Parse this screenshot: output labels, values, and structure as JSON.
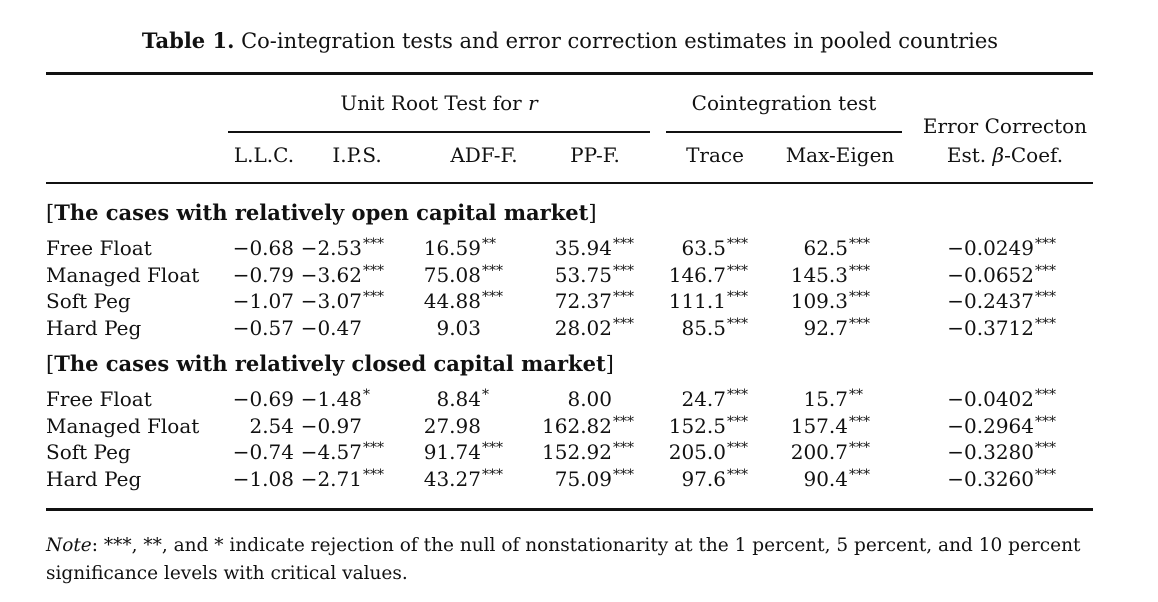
{
  "caption": {
    "label": "Table 1.",
    "text": " Co-integration tests and error correction estimates in pooled countries"
  },
  "headers": {
    "unit_root_group": "Unit Root Test for ",
    "unit_root_var": "r",
    "coint_group": "Cointegration test",
    "error_line1": "Error Correcton",
    "error_line2_pre": "Est. ",
    "error_line2_beta": "β",
    "error_line2_post": "-Coef.",
    "columns": [
      "L.L.C.",
      "I.P.S.",
      "ADF-F.",
      "PP-F.",
      "Trace",
      "Max-Eigen"
    ]
  },
  "groups": [
    {
      "bracket_open": "[",
      "title": "The cases with relatively open capital market",
      "bracket_close": "]",
      "rows": [
        {
          "label": "Free Float",
          "llc": "−0.68",
          "ips": "−2.53",
          "ips_sig": "***",
          "adf": "16.59",
          "adf_sig": "**",
          "pp": "35.94",
          "pp_sig": "***",
          "trace": "63.5",
          "trace_sig": "***",
          "maxeig": "62.5",
          "maxeig_sig": "***",
          "beta": "−0.0249",
          "beta_sig": "***"
        },
        {
          "label": "Managed Float",
          "llc": "−0.79",
          "ips": "−3.62",
          "ips_sig": "***",
          "adf": "75.08",
          "adf_sig": "***",
          "pp": "53.75",
          "pp_sig": "***",
          "trace": "146.7",
          "trace_sig": "***",
          "maxeig": "145.3",
          "maxeig_sig": "***",
          "beta": "−0.0652",
          "beta_sig": "***"
        },
        {
          "label": "Soft Peg",
          "llc": "−1.07",
          "ips": "−3.07",
          "ips_sig": "***",
          "adf": "44.88",
          "adf_sig": "***",
          "pp": "72.37",
          "pp_sig": "***",
          "trace": "111.1",
          "trace_sig": "***",
          "maxeig": "109.3",
          "maxeig_sig": "***",
          "beta": "−0.2437",
          "beta_sig": "***"
        },
        {
          "label": "Hard Peg",
          "llc": "−0.57",
          "ips": "−0.47",
          "ips_sig": "",
          "adf": "9.03",
          "adf_sig": "",
          "pp": "28.02",
          "pp_sig": "***",
          "trace": "85.5",
          "trace_sig": "***",
          "maxeig": "92.7",
          "maxeig_sig": "***",
          "beta": "−0.3712",
          "beta_sig": "***"
        }
      ]
    },
    {
      "bracket_open": "[",
      "title": "The cases with relatively closed capital market",
      "bracket_close": "]",
      "rows": [
        {
          "label": "Free Float",
          "llc": "−0.69",
          "ips": "−1.48",
          "ips_sig": "*",
          "adf": "8.84",
          "adf_sig": "*",
          "pp": "8.00",
          "pp_sig": "",
          "trace": "24.7",
          "trace_sig": "***",
          "maxeig": "15.7",
          "maxeig_sig": "**",
          "beta": "−0.0402",
          "beta_sig": "***"
        },
        {
          "label": "Managed Float",
          "llc": "2.54",
          "ips": "−0.97",
          "ips_sig": "",
          "adf": "27.98",
          "adf_sig": "",
          "pp": "162.82",
          "pp_sig": "***",
          "trace": "152.5",
          "trace_sig": "***",
          "maxeig": "157.4",
          "maxeig_sig": "***",
          "beta": "−0.2964",
          "beta_sig": "***"
        },
        {
          "label": "Soft Peg",
          "llc": "−0.74",
          "ips": "−4.57",
          "ips_sig": "***",
          "adf": "91.74",
          "adf_sig": "***",
          "pp": "152.92",
          "pp_sig": "***",
          "trace": "205.0",
          "trace_sig": "***",
          "maxeig": "200.7",
          "maxeig_sig": "***",
          "beta": "−0.3280",
          "beta_sig": "***"
        },
        {
          "label": "Hard Peg",
          "llc": "−1.08",
          "ips": "−2.71",
          "ips_sig": "***",
          "adf": "43.27",
          "adf_sig": "***",
          "pp": "75.09",
          "pp_sig": "***",
          "trace": "97.6",
          "trace_sig": "***",
          "maxeig": "90.4",
          "maxeig_sig": "***",
          "beta": "−0.3260",
          "beta_sig": "***"
        }
      ]
    }
  ],
  "note": {
    "label": "Note",
    "text": ": ***, **, and * indicate rejection of the null of nonstationarity at the 1 percent, 5 percent, and 10 percent significance levels with critical values."
  }
}
